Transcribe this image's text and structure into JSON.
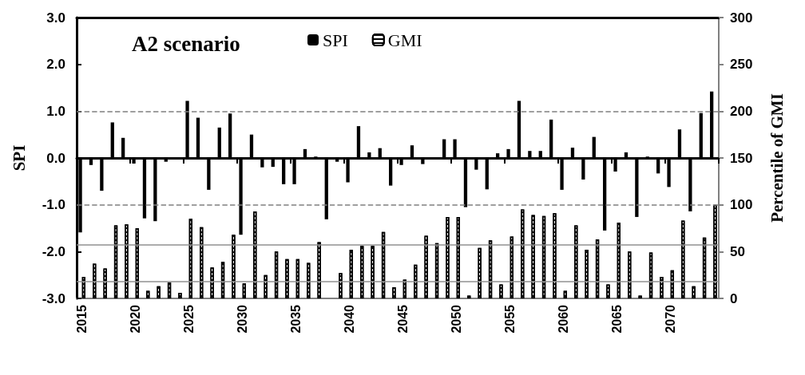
{
  "chart_data": {
    "type": "bar",
    "title": "A2 scenario",
    "ylabel": "SPI",
    "y2label": "Percentile of GMI",
    "categories": [
      "2015",
      null,
      null,
      null,
      null,
      "2020",
      null,
      null,
      null,
      null,
      "2025",
      null,
      null,
      null,
      null,
      "2030",
      null,
      null,
      null,
      null,
      "2035",
      null,
      null,
      null,
      null,
      "2040",
      null,
      null,
      null,
      null,
      "2045",
      null,
      null,
      null,
      null,
      "2050",
      null,
      null,
      null,
      null,
      "2055",
      null,
      null,
      null,
      null,
      "2060",
      null,
      null,
      null,
      null,
      "2065",
      null,
      null,
      null,
      null,
      "2070",
      null,
      null,
      null,
      null
    ],
    "series": [
      {
        "name": "SPI",
        "color": "#000000",
        "values": [
          -1.59,
          -0.15,
          -0.7,
          0.76,
          0.43,
          -0.12,
          -1.29,
          -1.35,
          -0.08,
          0,
          1.22,
          0.86,
          -0.68,
          0.65,
          0.95,
          -1.64,
          0.5,
          -0.2,
          -0.19,
          -0.56,
          -0.56,
          0.19,
          0.03,
          -1.31,
          -0.08,
          -0.52,
          0.68,
          0.12,
          0.21,
          -0.59,
          -0.15,
          0.27,
          -0.13,
          0,
          0.4,
          0.4,
          -1.05,
          -0.25,
          -0.67,
          0.1,
          0.19,
          1.22,
          0.15,
          0.15,
          0.82,
          -0.68,
          0.22,
          -0.46,
          0.45,
          -1.55,
          -0.29,
          0.12,
          -1.26,
          0.03,
          -0.33,
          -0.62,
          0.61,
          -1.14,
          0.96,
          1.42
        ]
      },
      {
        "name": "GMI",
        "axis": "y2",
        "color": "#ffffff",
        "values": [
          23,
          37,
          32,
          78,
          79,
          75,
          8,
          13,
          17,
          6,
          85,
          76,
          33,
          39,
          68,
          16,
          93,
          25,
          50,
          42,
          42,
          38,
          60,
          null,
          27,
          52,
          56,
          56,
          71,
          12,
          20,
          36,
          67,
          59,
          87,
          87,
          3,
          54,
          62,
          15,
          66,
          95,
          89,
          88,
          91,
          8,
          78,
          52,
          63,
          15,
          81,
          50,
          3,
          49,
          23,
          30,
          83,
          13,
          65,
          100
        ]
      }
    ],
    "ylim": [
      -3,
      3
    ],
    "yticks": [
      {
        "value": -3,
        "label": "-3.0"
      },
      {
        "value": -2,
        "label": "-2.0"
      },
      {
        "value": -1,
        "label": "-1.0"
      },
      {
        "value": 0,
        "label": "0.0"
      },
      {
        "value": 1,
        "label": "1.0"
      },
      {
        "value": 2,
        "label": "2.0"
      },
      {
        "value": 3,
        "label": "3.0"
      }
    ],
    "y2lim": [
      0,
      300
    ],
    "y2ticks": [
      0,
      50,
      100,
      150,
      200,
      250,
      300
    ],
    "ref_lines": [
      {
        "axis": "y",
        "value": 1,
        "color": "#808080",
        "line_style": "dashed"
      },
      {
        "axis": "y",
        "value": -1,
        "color": "#808080",
        "line_style": "dashed"
      },
      {
        "axis": "y2",
        "value": 57,
        "color": "#909090",
        "line_style": "solid"
      },
      {
        "axis": "y2",
        "value": 18,
        "color": "#909090",
        "line_style": "solid"
      }
    ],
    "legend": "top",
    "grid": false
  }
}
